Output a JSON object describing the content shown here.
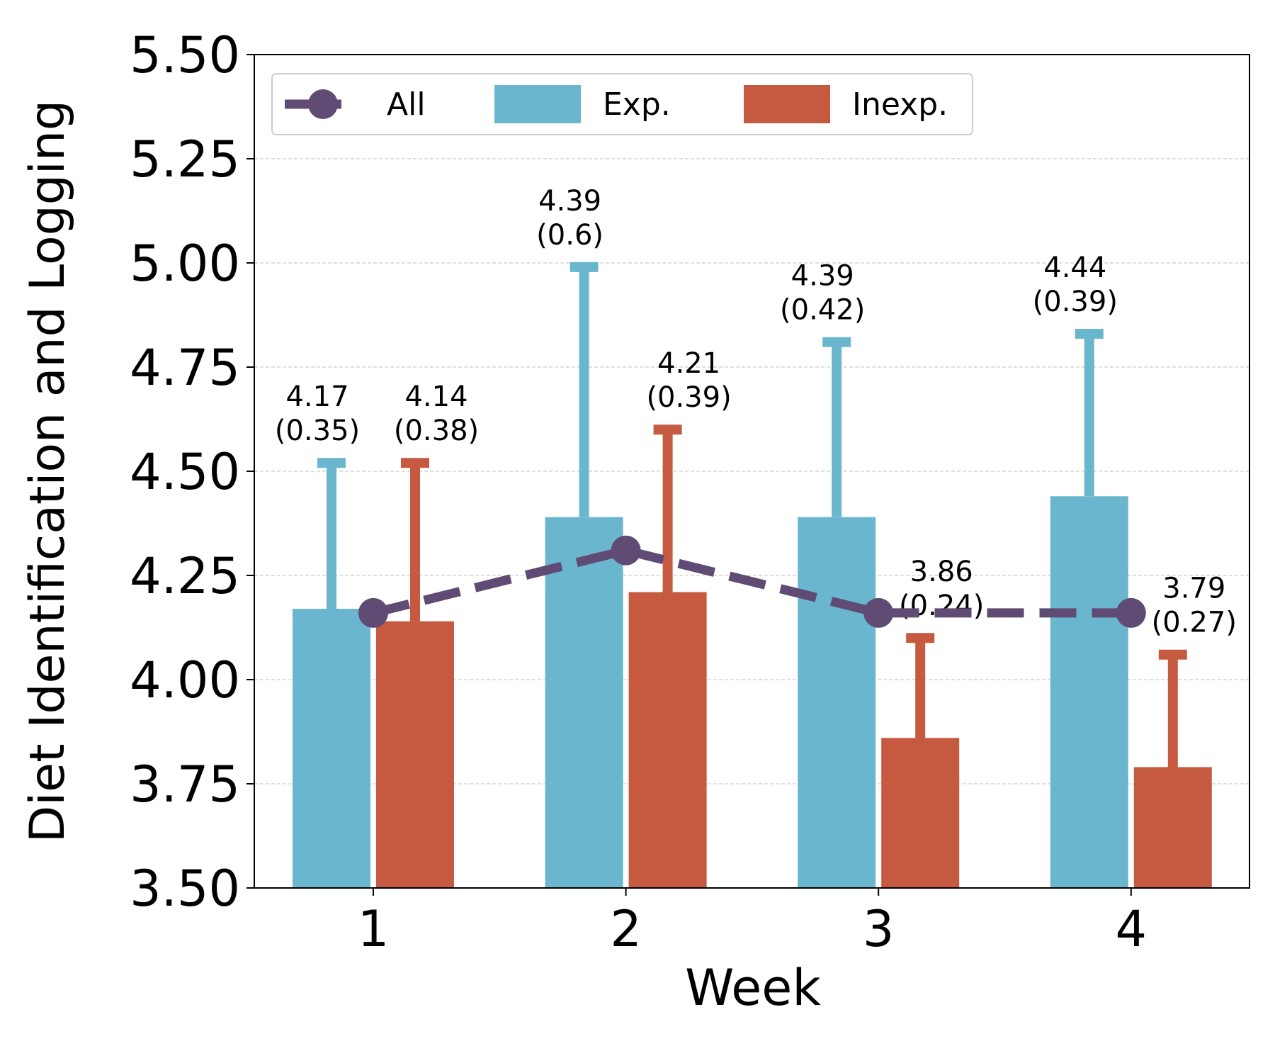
{
  "chart_data": {
    "type": "bar",
    "x_label": "Week",
    "y_label": "Diet Identification and Logging",
    "categories": [
      "1",
      "2",
      "3",
      "4"
    ],
    "series": [
      {
        "name": "All",
        "type": "line",
        "color": "#5f4b73",
        "values": [
          4.16,
          4.31,
          4.16,
          4.16
        ]
      },
      {
        "name": "Exp.",
        "type": "bar",
        "color": "#6bb6cf",
        "values": [
          4.17,
          4.39,
          4.39,
          4.44
        ],
        "errors": [
          0.35,
          0.6,
          0.42,
          0.39
        ],
        "value_labels": [
          "4.17\n(0.35)",
          "4.39\n(0.6)",
          "4.39\n(0.42)",
          "4.44\n(0.39)"
        ]
      },
      {
        "name": "Inexp.",
        "type": "bar",
        "color": "#c55a40",
        "values": [
          4.14,
          4.21,
          3.86,
          3.79
        ],
        "errors": [
          0.38,
          0.39,
          0.24,
          0.27
        ],
        "value_labels": [
          "4.14\n(0.38)",
          "4.21\n(0.39)",
          "3.86\n(0.24)",
          "3.79\n(0.27)"
        ]
      }
    ],
    "ylim": [
      3.5,
      5.5
    ],
    "yticks": [
      {
        "value": 3.5,
        "label": "3.50"
      },
      {
        "value": 3.75,
        "label": "3.75"
      },
      {
        "value": 4,
        "label": "4.00"
      },
      {
        "value": 4.25,
        "label": "4.25"
      },
      {
        "value": 4.5,
        "label": "4.50"
      },
      {
        "value": 4.75,
        "label": "4.75"
      },
      {
        "value": 5,
        "label": "5.00"
      },
      {
        "value": 5.25,
        "label": "5.25"
      },
      {
        "value": 5.5,
        "label": "5.50"
      }
    ],
    "grid": true,
    "legend": "upper left"
  }
}
